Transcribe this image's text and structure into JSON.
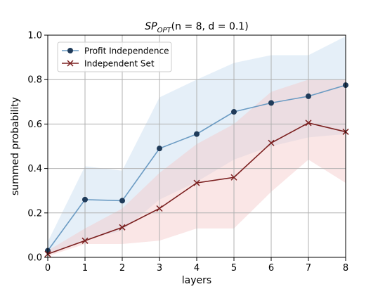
{
  "chart_data": {
    "type": "line",
    "title": {
      "prefix": "SP",
      "subscript": "OPT",
      "suffix": "(n = 8, d = 0.1)"
    },
    "xlabel": "layers",
    "ylabel": "summed probability",
    "xlim": [
      0,
      8
    ],
    "ylim": [
      0,
      1
    ],
    "xticks": [
      0,
      1,
      2,
      3,
      4,
      5,
      6,
      7,
      8
    ],
    "yticks": [
      0.0,
      0.2,
      0.4,
      0.6,
      0.8,
      1.0
    ],
    "ytick_labels": [
      "0.0",
      "0.2",
      "0.4",
      "0.6",
      "0.8",
      "1.0"
    ],
    "grid": true,
    "legend_position": "top-left",
    "x": [
      0,
      1,
      2,
      3,
      4,
      5,
      6,
      7,
      8
    ],
    "series": [
      {
        "name": "Profit Independence",
        "marker": "circle",
        "line_color": "#6b9bc3",
        "marker_color": "#1f3b5a",
        "band_color": "#c6dbef",
        "values": [
          0.03,
          0.26,
          0.255,
          0.49,
          0.555,
          0.655,
          0.695,
          0.725,
          0.775
        ],
        "band_upper": [
          0.07,
          0.41,
          0.39,
          0.72,
          0.8,
          0.875,
          0.91,
          0.91,
          0.995
        ],
        "band_lower": [
          0.01,
          0.08,
          0.12,
          0.26,
          0.34,
          0.44,
          0.5,
          0.54,
          0.555
        ]
      },
      {
        "name": "Independent Set",
        "marker": "x",
        "line_color": "#7b2020",
        "marker_color": "#7b2020",
        "band_color": "#f4c7c7",
        "values": [
          0.015,
          0.075,
          0.135,
          0.22,
          0.335,
          0.36,
          0.515,
          0.605,
          0.565
        ],
        "band_upper": [
          0.03,
          0.13,
          0.22,
          0.38,
          0.51,
          0.6,
          0.745,
          0.8,
          0.8
        ],
        "band_lower": [
          0.005,
          0.06,
          0.06,
          0.075,
          0.13,
          0.13,
          0.295,
          0.44,
          0.335
        ]
      }
    ]
  }
}
